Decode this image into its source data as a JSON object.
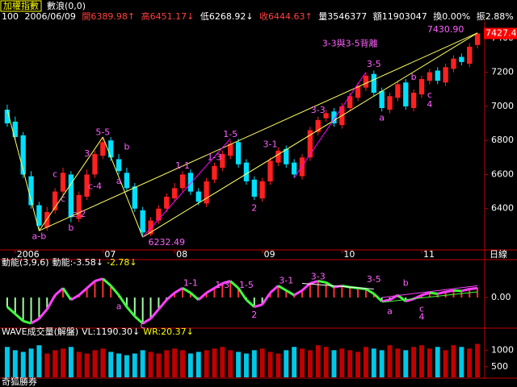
{
  "header": {
    "title": "加權指數",
    "mode": "數浪(0,0)",
    "period": "100",
    "date": "2006/06/09",
    "quote": [
      "開6389.98↑",
      "高6451.17↓",
      "低6268.92↓",
      "收6444.63↑",
      "量3546377",
      "額11903047",
      "換0.00%",
      "振2.88%"
    ],
    "footer": "奇狐勝券"
  },
  "chart_data": [
    {
      "type": "candlestick",
      "period_label": "日線",
      "up_color": "#ff2020",
      "down_color": "#00e0ff",
      "xlim": [
        -0.5,
        59.5
      ],
      "xticks": [
        {
          "value": 1,
          "label": "2006"
        },
        {
          "value": 12,
          "label": "07"
        },
        {
          "value": 21,
          "label": "08"
        },
        {
          "value": 32,
          "label": "09"
        },
        {
          "value": 42,
          "label": "10"
        },
        {
          "value": 52,
          "label": "11"
        }
      ],
      "ylim": [
        6167,
        7482
      ],
      "yticks": [
        6400,
        6600,
        6800,
        7000,
        7200,
        7400
      ],
      "open": [
        6980,
        6910,
        6830,
        6590,
        6420,
        6290,
        6390,
        6500,
        6600,
        6340,
        6470,
        6600,
        6710,
        6800,
        6690,
        6610,
        6530,
        6390,
        6250,
        6330,
        6400,
        6460,
        6520,
        6610,
        6500,
        6430,
        6570,
        6640,
        6710,
        6790,
        6670,
        6570,
        6460,
        6560,
        6670,
        6750,
        6670,
        6590,
        6700,
        6850,
        6930,
        6970,
        6890,
        6990,
        7050,
        7110,
        7190,
        7090,
        6980,
        7050,
        7140,
        6990,
        7070,
        7150,
        7210,
        7140,
        7220,
        7290,
        7250,
        7360
      ],
      "high": [
        7010,
        6940,
        6850,
        6620,
        6440,
        6410,
        6520,
        6640,
        6620,
        6500,
        6630,
        6740,
        6820,
        6820,
        6720,
        6640,
        6550,
        6410,
        6350,
        6420,
        6490,
        6550,
        6620,
        6630,
        6520,
        6580,
        6670,
        6740,
        6800,
        6810,
        6690,
        6590,
        6580,
        6700,
        6760,
        6770,
        6690,
        6720,
        6880,
        6940,
        6980,
        6990,
        7020,
        7080,
        7140,
        7200,
        7210,
        7110,
        7080,
        7150,
        7160,
        7100,
        7180,
        7220,
        7230,
        7250,
        7300,
        7310,
        7370,
        7430.9
      ],
      "low": [
        6880,
        6800,
        6580,
        6400,
        6270,
        6270,
        6370,
        6480,
        6320,
        6320,
        6450,
        6580,
        6690,
        6680,
        6600,
        6500,
        6380,
        6232.49,
        6240,
        6310,
        6380,
        6440,
        6500,
        6480,
        6420,
        6410,
        6550,
        6620,
        6690,
        6640,
        6540,
        6450,
        6440,
        6540,
        6650,
        6640,
        6580,
        6570,
        6680,
        6830,
        6910,
        6880,
        6870,
        6970,
        7030,
        7090,
        7060,
        6970,
        6960,
        7030,
        6980,
        6970,
        7050,
        7130,
        7130,
        7120,
        7200,
        7240,
        7230,
        7340
      ],
      "close": [
        6900,
        6820,
        6600,
        6420,
        6300,
        6380,
        6500,
        6610,
        6350,
        6480,
        6600,
        6720,
        6790,
        6700,
        6620,
        6520,
        6400,
        6260,
        6330,
        6400,
        6470,
        6520,
        6600,
        6500,
        6440,
        6560,
        6650,
        6720,
        6780,
        6660,
        6560,
        6470,
        6560,
        6680,
        6740,
        6660,
        6600,
        6700,
        6860,
        6920,
        6960,
        6900,
        7000,
        7060,
        7120,
        7180,
        7080,
        6990,
        7060,
        7130,
        7000,
        7080,
        7160,
        7200,
        7150,
        7230,
        7280,
        7260,
        7350,
        7427.4
      ],
      "trendlines": [
        {
          "color": "#ffff60",
          "x": [
            4,
            59
          ],
          "y": [
            6270,
            7430.9
          ]
        },
        {
          "color": "#ffff60",
          "x": [
            17,
            59
          ],
          "y": [
            6232.49,
            7430.9
          ]
        },
        {
          "color": "#ffff60",
          "x": [
            0,
            4
          ],
          "y": [
            6980,
            6270
          ]
        },
        {
          "color": "#ffff60",
          "x": [
            4,
            12
          ],
          "y": [
            6270,
            6820
          ]
        },
        {
          "color": "#ffff60",
          "x": [
            12,
            17
          ],
          "y": [
            6820,
            6232.49
          ]
        },
        {
          "color": "#ff00ff",
          "x": [
            17,
            28
          ],
          "y": [
            6232.49,
            6810
          ]
        },
        {
          "color": "#ff00ff",
          "x": [
            36,
            45
          ],
          "y": [
            6580,
            7200
          ]
        }
      ],
      "annotations": [
        {
          "text": "a-b",
          "x": 4,
          "y": 6235
        },
        {
          "text": "b",
          "x": 8,
          "y": 6285
        },
        {
          "text": "c-2",
          "x": 9,
          "y": 6365
        },
        {
          "text": "c",
          "x": 7,
          "y": 6455
        },
        {
          "text": "c-4",
          "x": 11,
          "y": 6530
        },
        {
          "text": "c",
          "x": 6,
          "y": 6600
        },
        {
          "text": "3",
          "x": 10,
          "y": 6720
        },
        {
          "text": "5-5",
          "x": 12,
          "y": 6845
        },
        {
          "text": "b",
          "x": 15,
          "y": 6760
        },
        {
          "text": "a",
          "x": 14,
          "y": 6560
        },
        {
          "text": "1-1",
          "x": 22,
          "y": 6650
        },
        {
          "text": "1-3",
          "x": 26,
          "y": 6700
        },
        {
          "text": "1-5",
          "x": 28,
          "y": 6835
        },
        {
          "text": "2",
          "x": 31,
          "y": 6400
        },
        {
          "text": "3-1",
          "x": 33,
          "y": 6775
        },
        {
          "text": "3-3",
          "x": 39,
          "y": 6975
        },
        {
          "text": "3-5",
          "x": 46,
          "y": 7245
        },
        {
          "text": "3-3與3-5背離",
          "x": 43,
          "y": 7365
        },
        {
          "text": "a",
          "x": 47,
          "y": 6930
        },
        {
          "text": "b",
          "x": 51,
          "y": 7170
        },
        {
          "text": "c",
          "x": 53,
          "y": 7065
        },
        {
          "text": "4",
          "x": 53,
          "y": 7010
        },
        {
          "text": "6232.49",
          "x": 20,
          "y": 6200
        },
        {
          "text": "7430.90",
          "x": 55,
          "y": 7450
        }
      ]
    },
    {
      "type": "momentum",
      "title": "動能(3,9,6)",
      "readouts": [
        "動能:-3.58↓",
        "-2.78↓"
      ],
      "pos_color": "#ff3030",
      "neg_color": "#a0ffa0",
      "rise_color": "#ff40ff",
      "fall_color": "#40ff40",
      "ylim": [
        -60,
        60
      ],
      "yticks": [
        {
          "value": 0,
          "label": "0.00"
        }
      ],
      "values": [
        -20,
        -35,
        -50,
        -55,
        -45,
        -25,
        5,
        20,
        -5,
        5,
        20,
        35,
        40,
        25,
        5,
        -20,
        -40,
        -55,
        -45,
        -25,
        -5,
        10,
        20,
        10,
        -5,
        10,
        20,
        30,
        35,
        20,
        -5,
        -20,
        -15,
        10,
        25,
        15,
        5,
        15,
        30,
        35,
        32,
        22,
        25,
        22,
        20,
        18,
        8,
        -8,
        -5,
        5,
        -8,
        -3,
        5,
        10,
        8,
        12,
        15,
        14,
        18,
        20
      ],
      "trendlines": [
        {
          "color": "#ffffff",
          "x": [
            37,
            46
          ],
          "y": [
            30,
            18
          ]
        },
        {
          "color": "#ff40ff",
          "x": [
            47,
            59
          ],
          "y": [
            0,
            25
          ]
        },
        {
          "color": "#40ff40",
          "x": [
            47,
            59
          ],
          "y": [
            -10,
            12
          ]
        }
      ],
      "annotations": [
        {
          "text": "a",
          "x": 14,
          "y": -20
        },
        {
          "text": "c",
          "x": 17,
          "y": -60
        },
        {
          "text": "1-1",
          "x": 23,
          "y": 30
        },
        {
          "text": "1-3",
          "x": 27,
          "y": 26
        },
        {
          "text": "1-5",
          "x": 30,
          "y": 26
        },
        {
          "text": "2",
          "x": 31,
          "y": -38
        },
        {
          "text": "3-1",
          "x": 35,
          "y": 35
        },
        {
          "text": "3-3",
          "x": 39,
          "y": 44
        },
        {
          "text": "3-5",
          "x": 46,
          "y": 38
        },
        {
          "text": "a",
          "x": 48,
          "y": -30
        },
        {
          "text": "b",
          "x": 50,
          "y": 30
        },
        {
          "text": "c",
          "x": 52,
          "y": -25
        },
        {
          "text": "4",
          "x": 52,
          "y": -42
        }
      ]
    },
    {
      "type": "bar",
      "title": "WAVE成交量(解盤)",
      "readouts": [
        "VL:1190.30↓",
        "WR:20.37↓"
      ],
      "ylim": [
        180,
        1350
      ],
      "yticks": [
        500,
        1000
      ],
      "values": [
        1100,
        1000,
        950,
        1050,
        1150,
        900,
        1000,
        1050,
        1100,
        950,
        900,
        1000,
        1050,
        950,
        900,
        850,
        900,
        1000,
        950,
        900,
        1000,
        1050,
        1000,
        900,
        950,
        1000,
        1050,
        1100,
        1000,
        950,
        900,
        1000,
        1050,
        950,
        900,
        1000,
        1100,
        1050,
        1000,
        1150,
        1100,
        1000,
        1050,
        1000,
        950,
        1100,
        1050,
        1000,
        1150,
        1050,
        1000,
        1100,
        1150,
        1050,
        1100,
        1000,
        1150,
        1100,
        1050,
        1190.3
      ]
    }
  ]
}
